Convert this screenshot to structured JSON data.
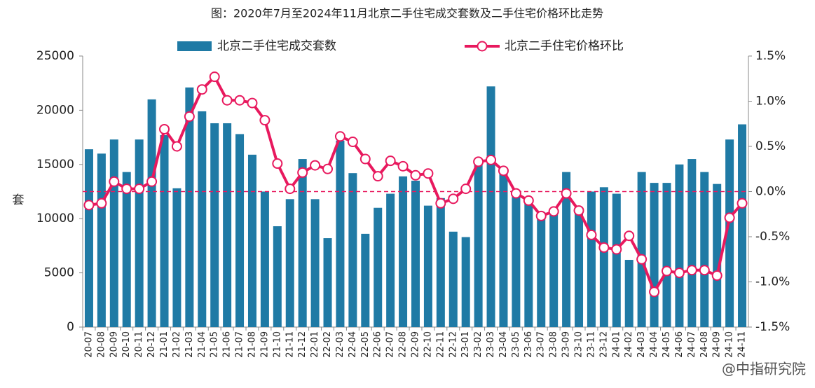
{
  "chart_data": {
    "type": "bar_line",
    "title": "图：2020年7月至2024年11月北京二手住宅成交套数及二手住宅价格环比走势",
    "y_label": "套",
    "watermark": "@中指研究院",
    "categories": [
      "20-07",
      "20-08",
      "20-09",
      "20-10",
      "20-11",
      "20-12",
      "21-01",
      "21-02",
      "21-03",
      "21-04",
      "21-05",
      "21-06",
      "21-07",
      "21-08",
      "21-09",
      "21-10",
      "21-11",
      "21-12",
      "22-01",
      "22-02",
      "22-03",
      "22-04",
      "22-05",
      "22-06",
      "22-07",
      "22-08",
      "22-09",
      "22-10",
      "22-11",
      "22-12",
      "23-01",
      "23-02",
      "23-03",
      "23-04",
      "23-05",
      "23-06",
      "23-07",
      "23-08",
      "23-09",
      "23-10",
      "23-11",
      "23-12",
      "24-01",
      "24-02",
      "24-03",
      "24-04",
      "24-05",
      "24-06",
      "24-07",
      "24-08",
      "24-09",
      "24-10",
      "24-11"
    ],
    "series": [
      {
        "name": "北京二手住宅成交套数",
        "type": "bar",
        "color": "#1f7aa5",
        "values": [
          16400,
          16000,
          17300,
          14300,
          17300,
          21000,
          17700,
          12800,
          22100,
          19900,
          18800,
          18800,
          17800,
          15900,
          12500,
          9300,
          11800,
          15500,
          11800,
          8200,
          17200,
          14200,
          8600,
          11000,
          12300,
          13900,
          13500,
          11200,
          11900,
          8800,
          8300,
          15000,
          22200,
          14600,
          12000,
          11500,
          10600,
          10500,
          14300,
          10900,
          12500,
          12900,
          12300,
          6200,
          14300,
          13300,
          13300,
          15000,
          15500,
          14300,
          13200,
          17300,
          18700
        ]
      },
      {
        "name": "北京二手住宅价格环比",
        "type": "line",
        "axis": "y2",
        "color": "#e8195e",
        "values": [
          -0.15,
          -0.13,
          0.11,
          0.03,
          0.03,
          0.11,
          0.69,
          0.5,
          0.83,
          1.13,
          1.27,
          1.01,
          1.01,
          0.98,
          0.79,
          0.31,
          0.03,
          0.21,
          0.29,
          0.25,
          0.61,
          0.55,
          0.36,
          0.17,
          0.34,
          0.28,
          0.18,
          0.2,
          -0.13,
          -0.08,
          0.03,
          0.33,
          0.35,
          0.23,
          -0.02,
          -0.1,
          -0.27,
          -0.22,
          -0.02,
          -0.21,
          -0.48,
          -0.62,
          -0.64,
          -0.49,
          -0.75,
          -1.11,
          -0.88,
          -0.9,
          -0.87,
          -0.87,
          -0.93,
          -0.29,
          -0.13
        ]
      }
    ],
    "ylim": [
      0,
      25000
    ],
    "yticks": [
      0,
      5000,
      10000,
      15000,
      20000,
      25000
    ],
    "y2lim": [
      -1.5,
      1.5
    ],
    "y2ticks": [
      {
        "value": 1.5,
        "label": "1.5%"
      },
      {
        "value": 1.0,
        "label": "1.0%"
      },
      {
        "value": 0.5,
        "label": "0.5%"
      },
      {
        "value": 0.0,
        "label": "0.0%"
      },
      {
        "value": -0.5,
        "label": "-0.5%"
      },
      {
        "value": -1.0,
        "label": "-1.0%"
      },
      {
        "value": -1.5,
        "label": "-1.5%"
      }
    ],
    "y2_reference_line": true,
    "grid": false
  }
}
